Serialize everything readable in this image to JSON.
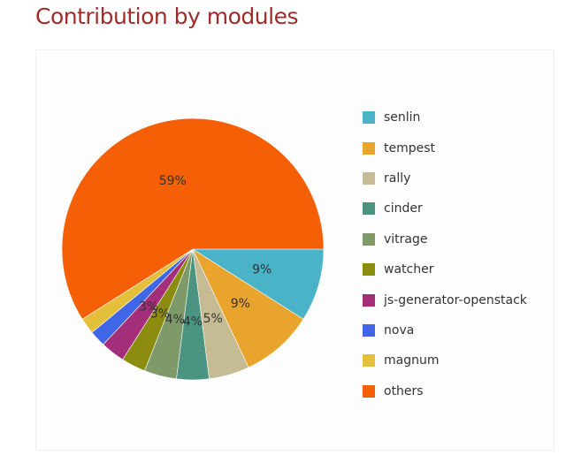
{
  "title": "Contribution by modules",
  "chart_data": {
    "type": "pie",
    "slices": [
      {
        "label": "senlin",
        "value": 9,
        "text": "9%",
        "color": "#4bb3c8"
      },
      {
        "label": "tempest",
        "value": 9,
        "text": "9%",
        "color": "#e9a42e"
      },
      {
        "label": "rally",
        "value": 5,
        "text": "5%",
        "color": "#c6bc94"
      },
      {
        "label": "cinder",
        "value": 4,
        "text": "4%",
        "color": "#4a9481"
      },
      {
        "label": "vitrage",
        "value": 4,
        "text": "4%",
        "color": "#7e9a69"
      },
      {
        "label": "watcher",
        "value": 3,
        "text": "3%",
        "color": "#8c8d10"
      },
      {
        "label": "js-generator-openstack",
        "value": 3,
        "text": "3%",
        "color": "#a52e7b"
      },
      {
        "label": "nova",
        "value": 2,
        "text": "",
        "color": "#3f66e6"
      },
      {
        "label": "magnum",
        "value": 2,
        "text": "",
        "color": "#e4bf3c"
      },
      {
        "label": "others",
        "value": 59,
        "text": "59%",
        "color": "#f55f05"
      }
    ],
    "legend_position": "right"
  }
}
